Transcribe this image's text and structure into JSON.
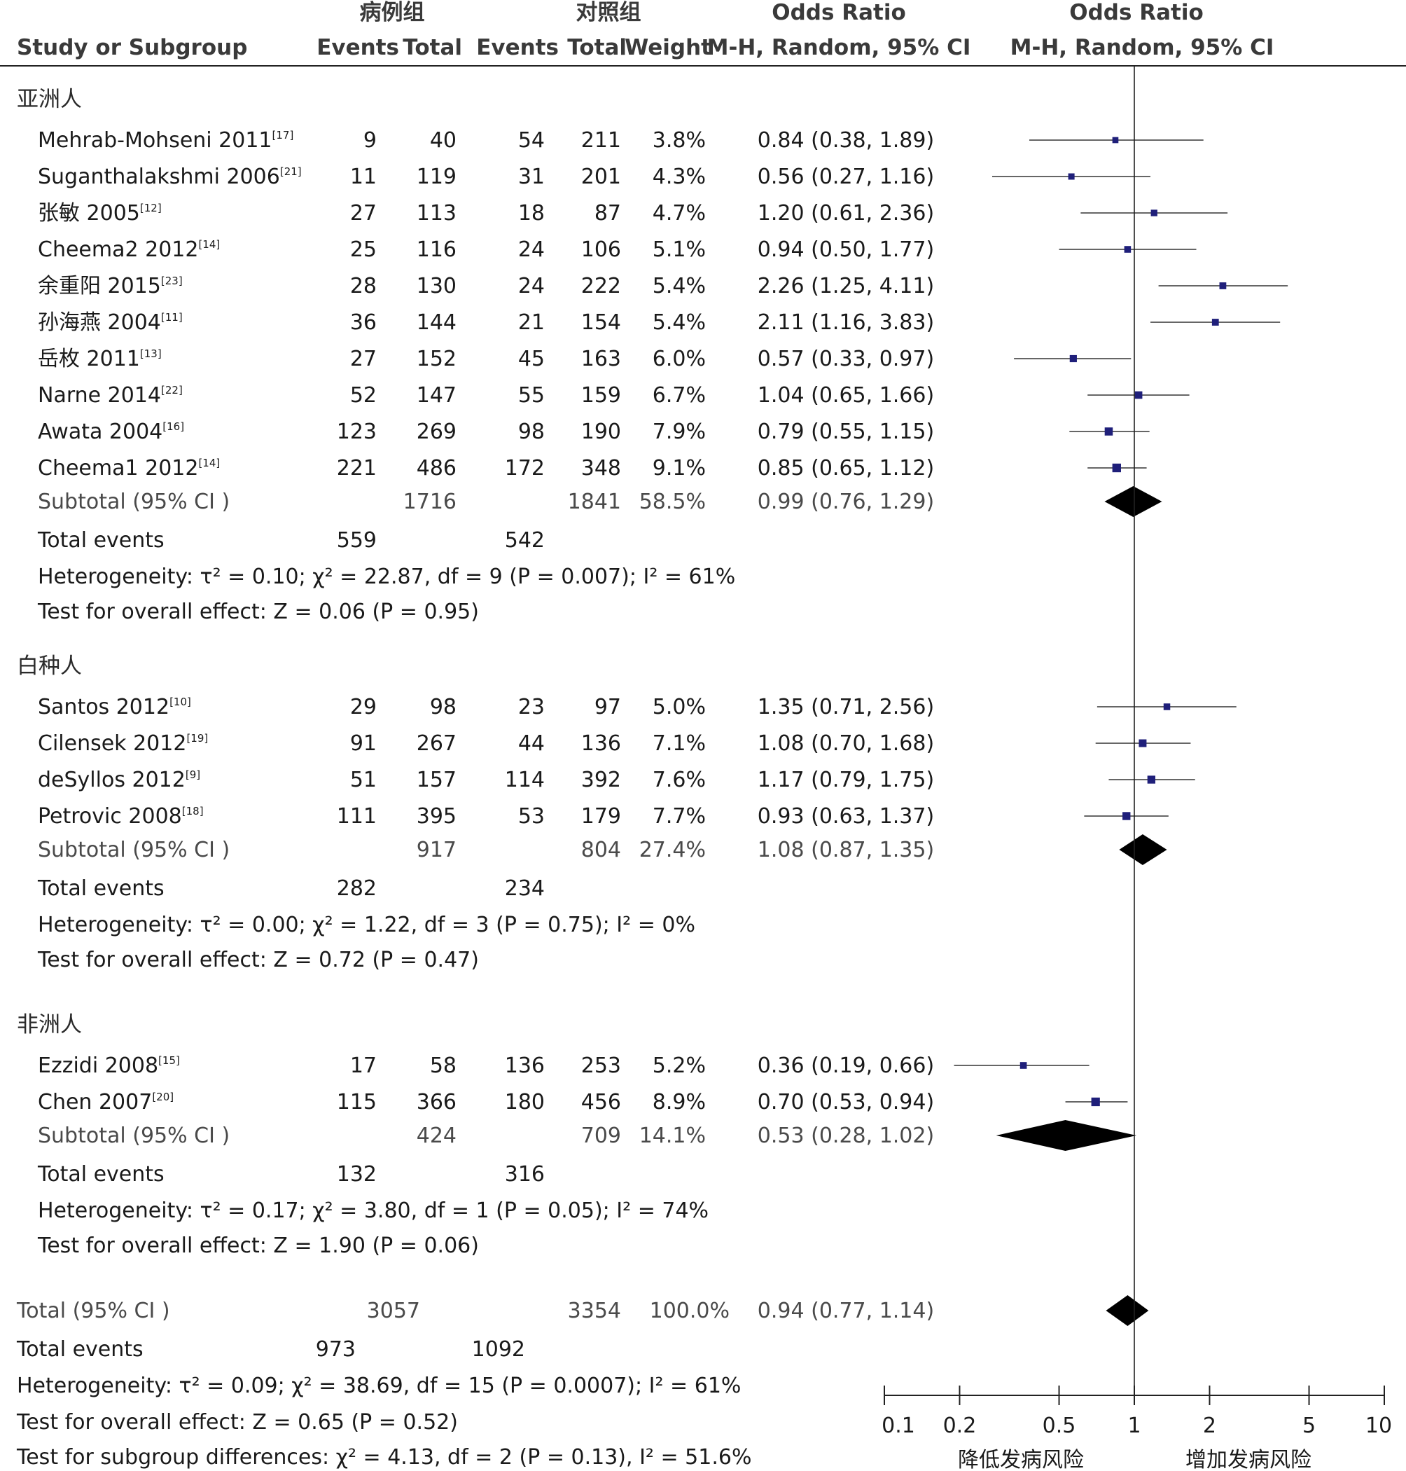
{
  "chart_data": {
    "type": "forest",
    "headers": {
      "study": "Study or Subgroup",
      "case_group": "病例组",
      "control_group": "对照组",
      "events": "Events",
      "total": "Total",
      "weight": "Weight",
      "or_title": "Odds Ratio",
      "or_method": "M-H, Random, 95% CI",
      "plot_title": "Odds Ratio",
      "plot_method": "M-H, Random, 95% CI"
    },
    "x_axis": {
      "scale": "log",
      "ticks": [
        0.1,
        0.2,
        0.5,
        1,
        2,
        5,
        10
      ],
      "tick_labels": [
        "0.1",
        "0.2",
        "0.5",
        "1",
        "2",
        "5",
        "10"
      ],
      "favours_left": "降低发病风险",
      "favours_right": "增加发病风险"
    },
    "groups": [
      {
        "name": "亚洲人",
        "studies": [
          {
            "study": "Mehrab-Mohseni 2011",
            "ref": "[17]",
            "e1": "9",
            "n1": "40",
            "e2": "54",
            "n2": "211",
            "weight": "3.8%",
            "or_text": "0.84 (0.38, 1.89)",
            "or": 0.84,
            "lo": 0.38,
            "hi": 1.89
          },
          {
            "study": "Suganthalakshmi 2006",
            "ref": "[21]",
            "e1": "11",
            "n1": "119",
            "e2": "31",
            "n2": "201",
            "weight": "4.3%",
            "or_text": "0.56 (0.27, 1.16)",
            "or": 0.56,
            "lo": 0.27,
            "hi": 1.16
          },
          {
            "study": "张敏 2005",
            "ref": "[12]",
            "e1": "27",
            "n1": "113",
            "e2": "18",
            "n2": "87",
            "weight": "4.7%",
            "or_text": "1.20 (0.61, 2.36)",
            "or": 1.2,
            "lo": 0.61,
            "hi": 2.36
          },
          {
            "study": "Cheema2 2012",
            "ref": "[14]",
            "e1": "25",
            "n1": "116",
            "e2": "24",
            "n2": "106",
            "weight": "5.1%",
            "or_text": "0.94 (0.50, 1.77)",
            "or": 0.94,
            "lo": 0.5,
            "hi": 1.77
          },
          {
            "study": "余重阳 2015",
            "ref": "[23]",
            "e1": "28",
            "n1": "130",
            "e2": "24",
            "n2": "222",
            "weight": "5.4%",
            "or_text": "2.26 (1.25, 4.11)",
            "or": 2.26,
            "lo": 1.25,
            "hi": 4.11
          },
          {
            "study": "孙海燕 2004",
            "ref": "[11]",
            "e1": "36",
            "n1": "144",
            "e2": "21",
            "n2": "154",
            "weight": "5.4%",
            "or_text": "2.11 (1.16, 3.83)",
            "or": 2.11,
            "lo": 1.16,
            "hi": 3.83
          },
          {
            "study": "岳枚 2011",
            "ref": "[13]",
            "e1": "27",
            "n1": "152",
            "e2": "45",
            "n2": "163",
            "weight": "6.0%",
            "or_text": "0.57 (0.33, 0.97)",
            "or": 0.57,
            "lo": 0.33,
            "hi": 0.97
          },
          {
            "study": "Narne 2014",
            "ref": "[22]",
            "e1": "52",
            "n1": "147",
            "e2": "55",
            "n2": "159",
            "weight": "6.7%",
            "or_text": "1.04 (0.65, 1.66)",
            "or": 1.04,
            "lo": 0.65,
            "hi": 1.66
          },
          {
            "study": "Awata 2004",
            "ref": "[16]",
            "e1": "123",
            "n1": "269",
            "e2": "98",
            "n2": "190",
            "weight": "7.9%",
            "or_text": "0.79 (0.55, 1.15)",
            "or": 0.79,
            "lo": 0.55,
            "hi": 1.15
          },
          {
            "study": "Cheema1 2012",
            "ref": "[14]",
            "e1": "221",
            "n1": "486",
            "e2": "172",
            "n2": "348",
            "weight": "9.1%",
            "or_text": "0.85 (0.65, 1.12)",
            "or": 0.85,
            "lo": 0.65,
            "hi": 1.12
          }
        ],
        "subtotal": {
          "label": "Subtotal (95% CI )",
          "n1": "1716",
          "n2": "1841",
          "weight": "58.5%",
          "or_text": "0.99 (0.76, 1.29)",
          "or": 0.99,
          "lo": 0.76,
          "hi": 1.29
        },
        "total_events": {
          "label": "Total events",
          "e1": "559",
          "e2": "542"
        },
        "heterogeneity": "Heterogeneity: τ² = 0.10; χ² = 22.87, df = 9 (P = 0.007); I² = 61%",
        "overall": "Test for overall effect: Z = 0.06 (P = 0.95)"
      },
      {
        "name": "白种人",
        "studies": [
          {
            "study": "Santos 2012",
            "ref": "[10]",
            "e1": "29",
            "n1": "98",
            "e2": "23",
            "n2": "97",
            "weight": "5.0%",
            "or_text": "1.35 (0.71, 2.56)",
            "or": 1.35,
            "lo": 0.71,
            "hi": 2.56
          },
          {
            "study": "Cilensek 2012",
            "ref": "[19]",
            "e1": "91",
            "n1": "267",
            "e2": "44",
            "n2": "136",
            "weight": "7.1%",
            "or_text": "1.08 (0.70, 1.68)",
            "or": 1.08,
            "lo": 0.7,
            "hi": 1.68
          },
          {
            "study": "deSyllos 2012",
            "ref": "[9]",
            "e1": "51",
            "n1": "157",
            "e2": "114",
            "n2": "392",
            "weight": "7.6%",
            "or_text": "1.17 (0.79, 1.75)",
            "or": 1.17,
            "lo": 0.79,
            "hi": 1.75
          },
          {
            "study": "Petrovic 2008",
            "ref": "[18]",
            "e1": "111",
            "n1": "395",
            "e2": "53",
            "n2": "179",
            "weight": "7.7%",
            "or_text": "0.93 (0.63, 1.37)",
            "or": 0.93,
            "lo": 0.63,
            "hi": 1.37
          }
        ],
        "subtotal": {
          "label": "Subtotal (95% CI )",
          "n1": "917",
          "n2": "804",
          "weight": "27.4%",
          "or_text": "1.08 (0.87, 1.35)",
          "or": 1.08,
          "lo": 0.87,
          "hi": 1.35
        },
        "total_events": {
          "label": "Total events",
          "e1": "282",
          "e2": "234"
        },
        "heterogeneity": "Heterogeneity: τ² = 0.00; χ² = 1.22, df = 3 (P = 0.75); I² = 0%",
        "overall": "Test for overall effect: Z = 0.72 (P = 0.47)"
      },
      {
        "name": "非洲人",
        "studies": [
          {
            "study": "Ezzidi 2008",
            "ref": "[15]",
            "e1": "17",
            "n1": "58",
            "e2": "136",
            "n2": "253",
            "weight": "5.2%",
            "or_text": "0.36 (0.19, 0.66)",
            "or": 0.36,
            "lo": 0.19,
            "hi": 0.66
          },
          {
            "study": "Chen 2007",
            "ref": "[20]",
            "e1": "115",
            "n1": "366",
            "e2": "180",
            "n2": "456",
            "weight": "8.9%",
            "or_text": "0.70 (0.53, 0.94)",
            "or": 0.7,
            "lo": 0.53,
            "hi": 0.94
          }
        ],
        "subtotal": {
          "label": "Subtotal (95% CI )",
          "n1": "424",
          "n2": "709",
          "weight": "14.1%",
          "or_text": "0.53 (0.28, 1.02)",
          "or": 0.53,
          "lo": 0.28,
          "hi": 1.02
        },
        "total_events": {
          "label": "Total events",
          "e1": "132",
          "e2": "316"
        },
        "heterogeneity": "Heterogeneity: τ² = 0.17; χ² = 3.80, df = 1 (P = 0.05); I² = 74%",
        "overall": "Test for overall effect: Z = 1.90 (P = 0.06)"
      }
    ],
    "overall_total": {
      "label": "Total (95% CI )",
      "n1": "3057",
      "n2": "3354",
      "weight": "100.0%",
      "or_text": "0.94 (0.77, 1.14)",
      "or": 0.94,
      "lo": 0.77,
      "hi": 1.14
    },
    "overall_events": {
      "label": "Total events",
      "e1": "973",
      "e2": "1092"
    },
    "overall_heterogeneity": "Heterogeneity: τ² = 0.09; χ² = 38.69, df = 15 (P = 0.0007); I² = 61%",
    "overall_effect": "Test for overall effect: Z = 0.65 (P = 0.52)",
    "subgroup_differences": "Test for subgroup differences: χ² = 4.13, df = 2 (P = 0.13), I² = 51.6%",
    "colors": {
      "square": "#1f1f7a",
      "diamond": "#000000",
      "line": "#333333"
    }
  }
}
